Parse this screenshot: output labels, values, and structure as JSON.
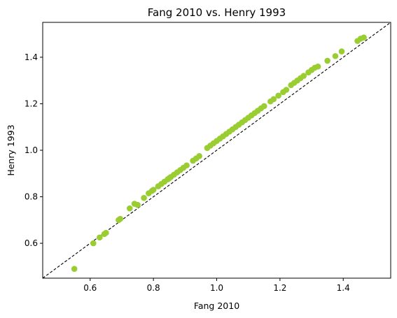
{
  "chart_data": {
    "type": "scatter",
    "title": "Fang 2010 vs. Henry 1993",
    "xlabel": "Fang 2010",
    "ylabel": "Henry 1993",
    "xlim": [
      0.45,
      1.55
    ],
    "ylim": [
      0.45,
      1.55
    ],
    "xticks": [
      0.6,
      0.8,
      1.0,
      1.2,
      1.4
    ],
    "yticks": [
      0.6,
      0.8,
      1.0,
      1.2,
      1.4
    ],
    "xtick_labels": [
      "0.6",
      "0.8",
      "1.0",
      "1.2",
      "1.4"
    ],
    "ytick_labels": [
      "0.6",
      "0.8",
      "1.0",
      "1.2",
      "1.4"
    ],
    "grid": false,
    "legend": false,
    "marker_color": "#9acd32",
    "reference_line": {
      "style": "dashed",
      "color": "#000000",
      "slope": 1,
      "intercept": 0
    },
    "points": [
      [
        0.55,
        0.49
      ],
      [
        0.61,
        0.6
      ],
      [
        0.63,
        0.625
      ],
      [
        0.645,
        0.64
      ],
      [
        0.65,
        0.645
      ],
      [
        0.69,
        0.7
      ],
      [
        0.695,
        0.705
      ],
      [
        0.725,
        0.75
      ],
      [
        0.74,
        0.77
      ],
      [
        0.75,
        0.765
      ],
      [
        0.77,
        0.795
      ],
      [
        0.785,
        0.815
      ],
      [
        0.795,
        0.825
      ],
      [
        0.8,
        0.83
      ],
      [
        0.815,
        0.845
      ],
      [
        0.825,
        0.855
      ],
      [
        0.835,
        0.865
      ],
      [
        0.845,
        0.875
      ],
      [
        0.85,
        0.88
      ],
      [
        0.855,
        0.885
      ],
      [
        0.865,
        0.895
      ],
      [
        0.875,
        0.905
      ],
      [
        0.885,
        0.915
      ],
      [
        0.895,
        0.925
      ],
      [
        0.905,
        0.935
      ],
      [
        0.925,
        0.955
      ],
      [
        0.935,
        0.965
      ],
      [
        0.945,
        0.975
      ],
      [
        0.97,
        1.01
      ],
      [
        0.98,
        1.02
      ],
      [
        0.99,
        1.03
      ],
      [
        1.0,
        1.04
      ],
      [
        1.01,
        1.05
      ],
      [
        1.02,
        1.06
      ],
      [
        1.03,
        1.07
      ],
      [
        1.04,
        1.08
      ],
      [
        1.05,
        1.09
      ],
      [
        1.06,
        1.1
      ],
      [
        1.07,
        1.11
      ],
      [
        1.08,
        1.12
      ],
      [
        1.09,
        1.13
      ],
      [
        1.1,
        1.14
      ],
      [
        1.11,
        1.15
      ],
      [
        1.12,
        1.16
      ],
      [
        1.13,
        1.17
      ],
      [
        1.14,
        1.18
      ],
      [
        1.15,
        1.19
      ],
      [
        1.17,
        1.21
      ],
      [
        1.18,
        1.22
      ],
      [
        1.195,
        1.235
      ],
      [
        1.21,
        1.25
      ],
      [
        1.22,
        1.26
      ],
      [
        1.235,
        1.28
      ],
      [
        1.245,
        1.29
      ],
      [
        1.255,
        1.3
      ],
      [
        1.265,
        1.31
      ],
      [
        1.275,
        1.32
      ],
      [
        1.29,
        1.335
      ],
      [
        1.3,
        1.345
      ],
      [
        1.31,
        1.355
      ],
      [
        1.32,
        1.36
      ],
      [
        1.35,
        1.385
      ],
      [
        1.375,
        1.405
      ],
      [
        1.395,
        1.425
      ],
      [
        1.445,
        1.47
      ],
      [
        1.455,
        1.48
      ],
      [
        1.465,
        1.485
      ]
    ]
  }
}
